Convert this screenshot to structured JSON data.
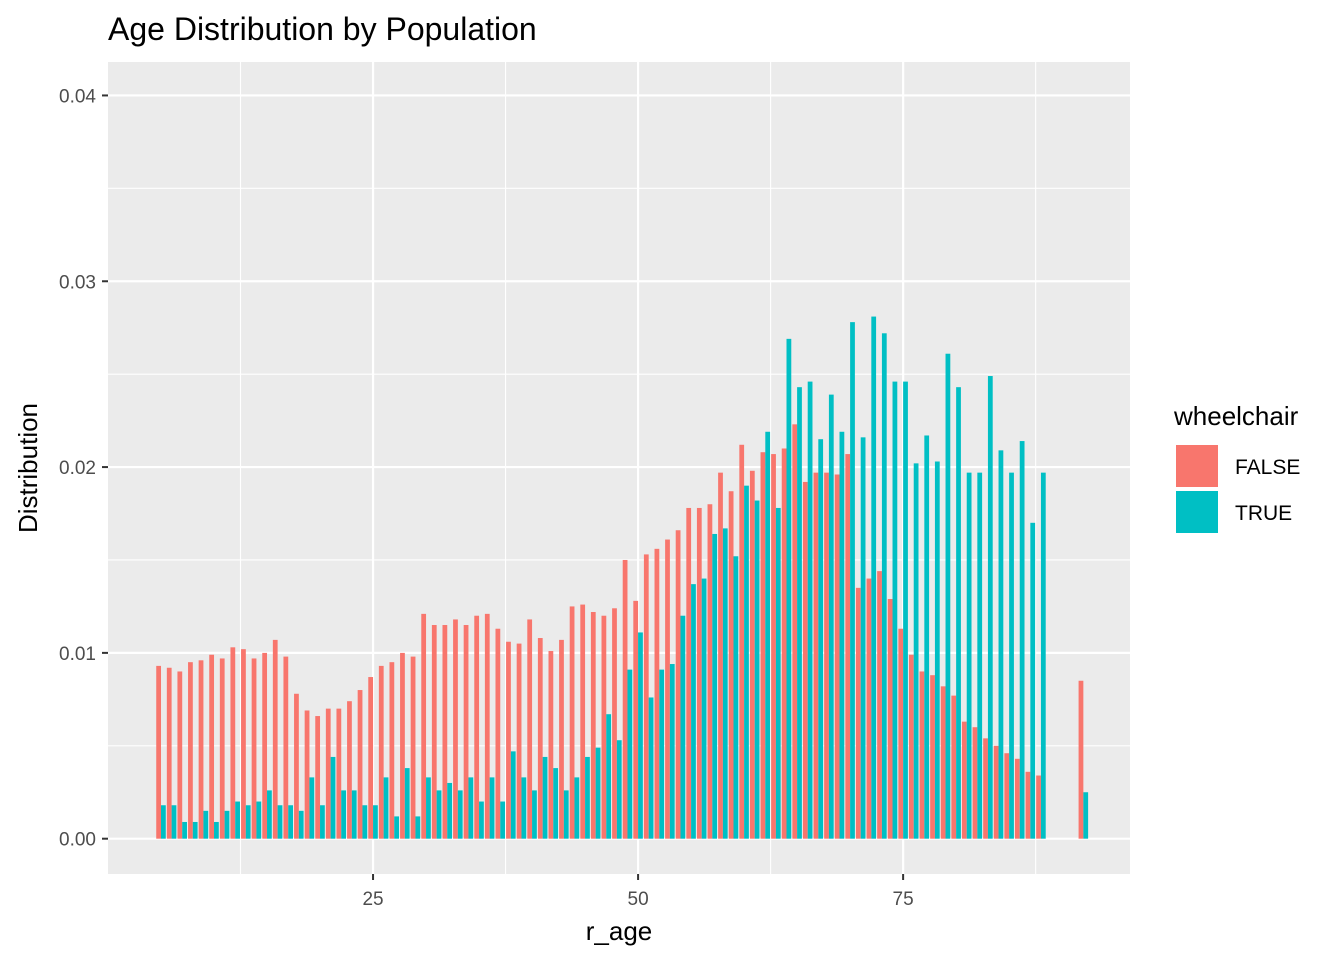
{
  "chart_data": {
    "type": "bar",
    "title": "Age Distribution by Population",
    "xlabel": "r_age",
    "ylabel": "Distribution",
    "xlim": [
      0,
      96.4
    ],
    "ylim": [
      -0.0019,
      0.0418
    ],
    "x_ticks": [
      25,
      50,
      75
    ],
    "x_tick_labels": [
      "25",
      "50",
      "75"
    ],
    "y_ticks": [
      0,
      0.01,
      0.02,
      0.03,
      0.04
    ],
    "y_tick_labels": [
      "0.00",
      "0.01",
      "0.02",
      "0.03",
      "0.04"
    ],
    "grid": true,
    "legend": {
      "title": "wheelchair",
      "placement": "right",
      "entries": [
        {
          "label": "FALSE",
          "color": "#F8766D"
        },
        {
          "label": "TRUE",
          "color": "#00BFC4"
        }
      ]
    },
    "x": [
      5,
      6,
      7,
      8,
      9,
      10,
      11,
      12,
      13,
      14,
      15,
      16,
      17,
      18,
      19,
      20,
      21,
      22,
      23,
      24,
      25,
      26,
      27,
      28,
      29,
      30,
      31,
      32,
      33,
      34,
      35,
      36,
      37,
      38,
      39,
      40,
      41,
      42,
      43,
      44,
      45,
      46,
      47,
      48,
      49,
      50,
      51,
      52,
      53,
      54,
      55,
      56,
      57,
      58,
      59,
      60,
      61,
      62,
      63,
      64,
      65,
      66,
      67,
      68,
      69,
      70,
      71,
      72,
      73,
      74,
      75,
      76,
      77,
      78,
      79,
      80,
      81,
      82,
      83,
      84,
      85,
      86,
      87,
      88,
      92
    ],
    "series": [
      {
        "name": "FALSE",
        "color": "#F8766D",
        "values": [
          0.0093,
          0.0092,
          0.009,
          0.0095,
          0.0096,
          0.0099,
          0.0097,
          0.0103,
          0.0102,
          0.0097,
          0.01,
          0.0107,
          0.0098,
          0.0078,
          0.0069,
          0.0066,
          0.007,
          0.007,
          0.0074,
          0.008,
          0.0087,
          0.0093,
          0.0095,
          0.01,
          0.0098,
          0.0121,
          0.0115,
          0.0115,
          0.0118,
          0.0115,
          0.012,
          0.0121,
          0.0113,
          0.0106,
          0.0105,
          0.0118,
          0.0108,
          0.0101,
          0.0107,
          0.0125,
          0.0126,
          0.0122,
          0.012,
          0.0124,
          0.015,
          0.0128,
          0.0153,
          0.0156,
          0.0161,
          0.0166,
          0.0178,
          0.0178,
          0.018,
          0.0197,
          0.0187,
          0.0212,
          0.0198,
          0.0208,
          0.0207,
          0.021,
          0.0223,
          0.0192,
          0.0197,
          0.0197,
          0.0196,
          0.0207,
          0.0135,
          0.014,
          0.0144,
          0.0129,
          0.0113,
          0.0099,
          0.009,
          0.0088,
          0.0082,
          0.0077,
          0.0063,
          0.006,
          0.0054,
          0.005,
          0.0046,
          0.0043,
          0.0036,
          0.0034,
          0.0085
        ]
      },
      {
        "name": "TRUE",
        "color": "#00BFC4",
        "values": [
          0.0018,
          0.0018,
          0.0009,
          0.0009,
          0.0015,
          0.0009,
          0.0015,
          0.002,
          0.0018,
          0.002,
          0.0026,
          0.0018,
          0.0018,
          0.0015,
          0.0033,
          0.0018,
          0.0044,
          0.0026,
          0.0026,
          0.0018,
          0.0018,
          0.0033,
          0.0012,
          0.0038,
          0.0012,
          0.0033,
          0.0026,
          0.003,
          0.0026,
          0.0033,
          0.002,
          0.0033,
          0.002,
          0.0047,
          0.0033,
          0.0026,
          0.0044,
          0.0038,
          0.0026,
          0.0033,
          0.0044,
          0.0049,
          0.0067,
          0.0053,
          0.0091,
          0.0111,
          0.0076,
          0.0091,
          0.0094,
          0.012,
          0.0137,
          0.014,
          0.0164,
          0.0167,
          0.0152,
          0.019,
          0.0182,
          0.0219,
          0.0178,
          0.0269,
          0.0243,
          0.0246,
          0.0215,
          0.0239,
          0.0219,
          0.0278,
          0.0216,
          0.0281,
          0.0272,
          0.0246,
          0.0246,
          0.0202,
          0.0217,
          0.0203,
          0.0261,
          0.0243,
          0.0197,
          0.0197,
          0.0249,
          0.0209,
          0.0197,
          0.0214,
          0.017,
          0.0197,
          0.0025
        ]
      }
    ]
  }
}
